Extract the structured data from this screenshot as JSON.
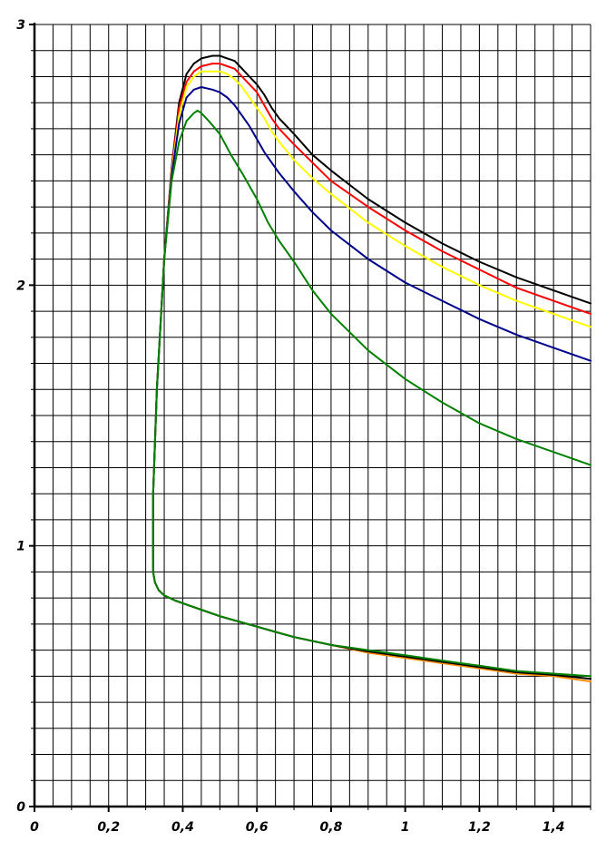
{
  "chart_data": {
    "type": "line",
    "title": "",
    "xlabel": "",
    "ylabel": "",
    "xlim": [
      0,
      1.5
    ],
    "ylim": [
      0,
      3
    ],
    "grid": true,
    "x_ticks": [
      {
        "value": 0,
        "label": "0"
      },
      {
        "value": 0.2,
        "label": "0,2"
      },
      {
        "value": 0.4,
        "label": "0,4"
      },
      {
        "value": 0.6,
        "label": "0,6"
      },
      {
        "value": 0.8,
        "label": "0,8"
      },
      {
        "value": 1.0,
        "label": "1"
      },
      {
        "value": 1.2,
        "label": "1,2"
      },
      {
        "value": 1.4,
        "label": "1,4"
      }
    ],
    "y_ticks": [
      {
        "value": 0,
        "label": "0"
      },
      {
        "value": 1,
        "label": "1"
      },
      {
        "value": 2,
        "label": "2"
      },
      {
        "value": 3,
        "label": "3"
      }
    ],
    "series": [
      {
        "color": "#000000",
        "x": [
          0.32,
          0.32,
          0.33,
          0.35,
          0.37,
          0.39,
          0.41,
          0.43,
          0.45,
          0.48,
          0.5,
          0.52,
          0.54,
          0.56,
          0.58,
          0.6,
          0.62,
          0.64,
          0.66,
          0.7,
          0.75,
          0.8,
          0.9,
          1.0,
          1.1,
          1.2,
          1.3,
          1.4,
          1.5
        ],
        "y": [
          0.95,
          1.2,
          1.6,
          2.1,
          2.45,
          2.7,
          2.81,
          2.85,
          2.87,
          2.88,
          2.88,
          2.87,
          2.86,
          2.83,
          2.8,
          2.77,
          2.73,
          2.68,
          2.64,
          2.58,
          2.5,
          2.44,
          2.33,
          2.24,
          2.16,
          2.09,
          2.03,
          1.98,
          1.93
        ]
      },
      {
        "color": "#ff0000",
        "x": [
          0.32,
          0.32,
          0.33,
          0.35,
          0.37,
          0.39,
          0.41,
          0.43,
          0.45,
          0.48,
          0.5,
          0.52,
          0.54,
          0.56,
          0.58,
          0.6,
          0.62,
          0.64,
          0.66,
          0.7,
          0.75,
          0.8,
          0.9,
          1.0,
          1.1,
          1.2,
          1.3,
          1.4,
          1.5
        ],
        "y": [
          0.95,
          1.2,
          1.6,
          2.1,
          2.44,
          2.68,
          2.78,
          2.82,
          2.84,
          2.85,
          2.85,
          2.84,
          2.83,
          2.8,
          2.77,
          2.74,
          2.69,
          2.64,
          2.6,
          2.54,
          2.47,
          2.4,
          2.3,
          2.21,
          2.13,
          2.06,
          1.99,
          1.94,
          1.89
        ]
      },
      {
        "color": "#ffff00",
        "x": [
          0.32,
          0.32,
          0.33,
          0.35,
          0.37,
          0.39,
          0.41,
          0.43,
          0.45,
          0.48,
          0.5,
          0.52,
          0.54,
          0.56,
          0.58,
          0.6,
          0.62,
          0.64,
          0.66,
          0.7,
          0.75,
          0.8,
          0.9,
          1.0,
          1.1,
          1.2,
          1.3,
          1.4,
          1.5
        ],
        "y": [
          0.95,
          1.2,
          1.6,
          2.1,
          2.43,
          2.65,
          2.76,
          2.8,
          2.82,
          2.82,
          2.82,
          2.81,
          2.79,
          2.76,
          2.72,
          2.68,
          2.64,
          2.59,
          2.55,
          2.48,
          2.41,
          2.35,
          2.24,
          2.15,
          2.07,
          2.0,
          1.94,
          1.89,
          1.84
        ]
      },
      {
        "color": "#00008b",
        "x": [
          0.32,
          0.32,
          0.33,
          0.35,
          0.37,
          0.39,
          0.41,
          0.43,
          0.45,
          0.48,
          0.5,
          0.52,
          0.54,
          0.56,
          0.58,
          0.6,
          0.62,
          0.64,
          0.66,
          0.7,
          0.75,
          0.8,
          0.9,
          1.0,
          1.1,
          1.2,
          1.3,
          1.4,
          1.5
        ],
        "y": [
          0.95,
          1.2,
          1.6,
          2.1,
          2.42,
          2.62,
          2.72,
          2.75,
          2.76,
          2.75,
          2.74,
          2.72,
          2.69,
          2.65,
          2.61,
          2.56,
          2.51,
          2.47,
          2.43,
          2.36,
          2.28,
          2.21,
          2.1,
          2.01,
          1.94,
          1.87,
          1.81,
          1.76,
          1.71
        ]
      },
      {
        "color": "#008000",
        "x": [
          0.32,
          0.32,
          0.33,
          0.35,
          0.37,
          0.39,
          0.41,
          0.43,
          0.44,
          0.45,
          0.47,
          0.5,
          0.53,
          0.56,
          0.6,
          0.63,
          0.66,
          0.7,
          0.75,
          0.8,
          0.9,
          1.0,
          1.1,
          1.2,
          1.3,
          1.4,
          1.5
        ],
        "y": [
          0.95,
          1.2,
          1.6,
          2.1,
          2.4,
          2.55,
          2.63,
          2.66,
          2.67,
          2.66,
          2.63,
          2.58,
          2.5,
          2.43,
          2.33,
          2.24,
          2.17,
          2.09,
          1.98,
          1.89,
          1.75,
          1.64,
          1.55,
          1.47,
          1.41,
          1.36,
          1.31
        ]
      },
      {
        "color": "#ff8c00",
        "x": [
          0.32,
          0.32,
          0.325,
          0.335,
          0.35,
          0.38,
          0.42,
          0.46,
          0.5,
          0.55,
          0.6,
          0.65,
          0.7,
          0.8,
          0.9,
          1.0,
          1.1,
          1.2,
          1.3,
          1.4,
          1.5
        ],
        "y": [
          0.95,
          0.9,
          0.86,
          0.83,
          0.81,
          0.79,
          0.77,
          0.75,
          0.73,
          0.71,
          0.69,
          0.67,
          0.65,
          0.62,
          0.59,
          0.57,
          0.55,
          0.53,
          0.51,
          0.5,
          0.48
        ]
      },
      {
        "color": "#000000",
        "x": [
          0.32,
          0.32,
          0.325,
          0.335,
          0.35,
          0.38,
          0.42,
          0.46,
          0.5,
          0.55,
          0.6,
          0.65,
          0.7,
          0.8,
          0.9,
          1.0,
          1.1,
          1.2,
          1.3,
          1.4,
          1.5
        ],
        "y": [
          0.95,
          0.9,
          0.86,
          0.83,
          0.81,
          0.79,
          0.77,
          0.75,
          0.73,
          0.71,
          0.69,
          0.67,
          0.65,
          0.62,
          0.595,
          0.575,
          0.555,
          0.535,
          0.515,
          0.505,
          0.49
        ]
      },
      {
        "color": "#008000",
        "x": [
          0.32,
          0.32,
          0.325,
          0.335,
          0.35,
          0.38,
          0.42,
          0.46,
          0.5,
          0.55,
          0.6,
          0.65,
          0.7,
          0.8,
          0.9,
          1.0,
          1.1,
          1.2,
          1.3,
          1.4,
          1.5
        ],
        "y": [
          0.95,
          0.9,
          0.86,
          0.83,
          0.81,
          0.79,
          0.77,
          0.75,
          0.73,
          0.71,
          0.69,
          0.67,
          0.65,
          0.62,
          0.6,
          0.58,
          0.56,
          0.54,
          0.52,
          0.51,
          0.5
        ]
      }
    ]
  }
}
